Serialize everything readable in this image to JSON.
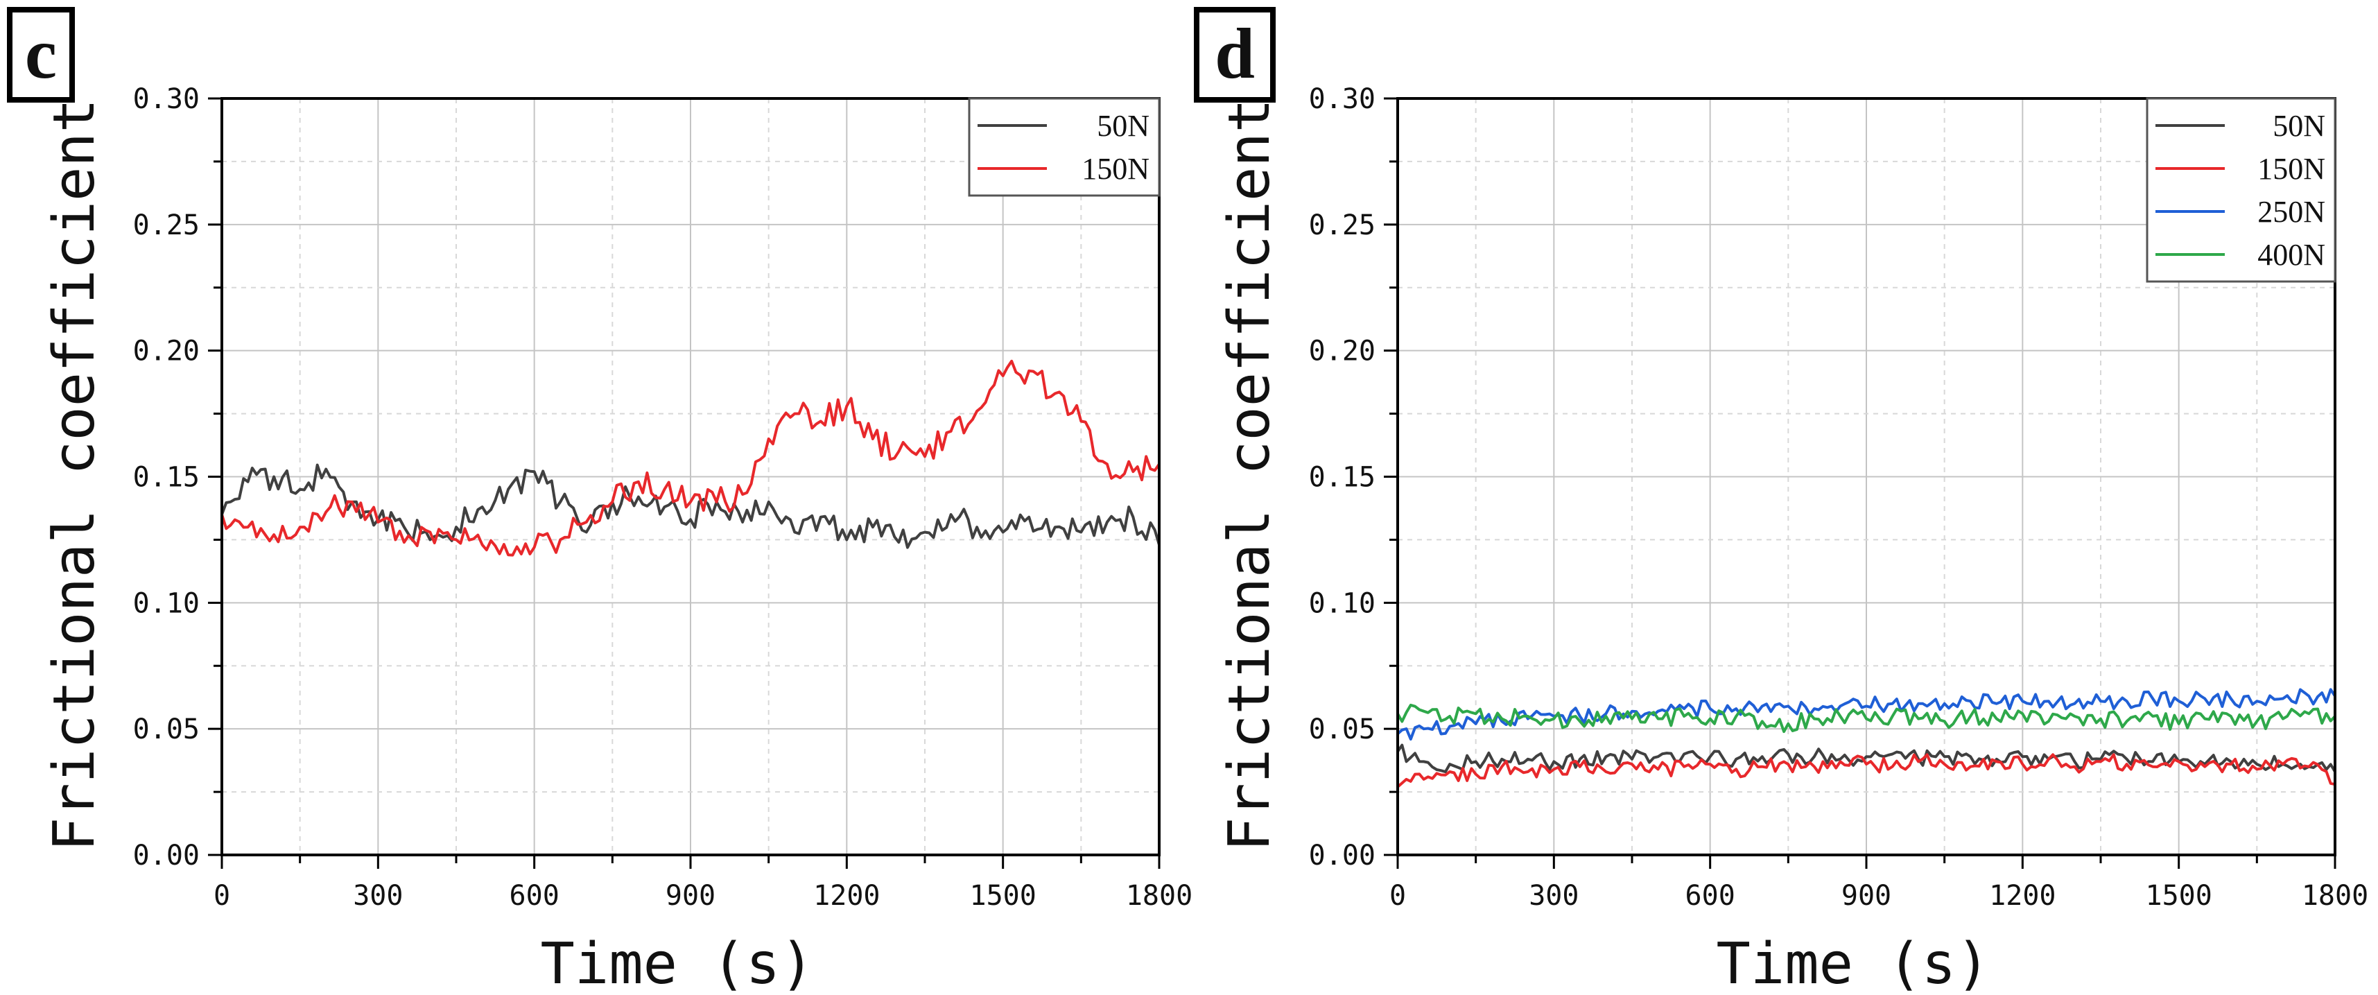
{
  "chart_data": [
    {
      "panel": "c",
      "type": "line",
      "xlabel": "Time (s)",
      "ylabel": "Frictional coefficient",
      "xlim": [
        0,
        1800
      ],
      "ylim": [
        0,
        0.3
      ],
      "xticks": [
        "0",
        "300",
        "600",
        "900",
        "1200",
        "1500",
        "1800"
      ],
      "yticks": [
        "0.00",
        "0.05",
        "0.10",
        "0.15",
        "0.20",
        "0.25",
        "0.30"
      ],
      "legend_position": "top-right",
      "grid": true,
      "series": [
        {
          "name": "50N",
          "color": "#404040",
          "x": [
            0,
            50,
            100,
            150,
            200,
            250,
            300,
            350,
            400,
            450,
            500,
            550,
            600,
            650,
            700,
            750,
            800,
            850,
            900,
            950,
            1000,
            1050,
            1100,
            1150,
            1200,
            1250,
            1300,
            1350,
            1400,
            1450,
            1500,
            1550,
            1600,
            1650,
            1700,
            1750,
            1800
          ],
          "values": [
            0.135,
            0.148,
            0.15,
            0.145,
            0.153,
            0.14,
            0.133,
            0.13,
            0.125,
            0.13,
            0.138,
            0.145,
            0.152,
            0.14,
            0.128,
            0.14,
            0.142,
            0.138,
            0.133,
            0.14,
            0.132,
            0.14,
            0.128,
            0.134,
            0.125,
            0.13,
            0.124,
            0.128,
            0.135,
            0.13,
            0.128,
            0.134,
            0.13,
            0.128,
            0.132,
            0.134,
            0.123
          ]
        },
        {
          "name": "150N",
          "color": "#e8282b",
          "x": [
            0,
            50,
            100,
            150,
            200,
            250,
            300,
            350,
            400,
            450,
            500,
            550,
            600,
            650,
            700,
            750,
            800,
            850,
            900,
            950,
            1000,
            1050,
            1100,
            1150,
            1200,
            1250,
            1300,
            1350,
            1400,
            1450,
            1500,
            1550,
            1600,
            1650,
            1700,
            1750,
            1800
          ],
          "values": [
            0.135,
            0.13,
            0.127,
            0.13,
            0.136,
            0.14,
            0.132,
            0.124,
            0.128,
            0.125,
            0.123,
            0.119,
            0.122,
            0.125,
            0.132,
            0.14,
            0.148,
            0.145,
            0.14,
            0.14,
            0.143,
            0.165,
            0.175,
            0.172,
            0.178,
            0.165,
            0.16,
            0.158,
            0.168,
            0.176,
            0.19,
            0.192,
            0.183,
            0.172,
            0.155,
            0.152,
            0.155
          ]
        }
      ]
    },
    {
      "panel": "d",
      "type": "line",
      "xlabel": "Time (s)",
      "ylabel": "Frictional coefficient",
      "xlim": [
        0,
        1800
      ],
      "ylim": [
        0,
        0.3
      ],
      "xticks": [
        "0",
        "300",
        "600",
        "900",
        "1200",
        "1500",
        "1800"
      ],
      "yticks": [
        "0.00",
        "0.05",
        "0.10",
        "0.15",
        "0.20",
        "0.25",
        "0.30"
      ],
      "legend_position": "top-right",
      "grid": true,
      "series": [
        {
          "name": "50N",
          "color": "#404040",
          "x": [
            0,
            50,
            100,
            150,
            200,
            250,
            300,
            350,
            400,
            450,
            500,
            550,
            600,
            650,
            700,
            750,
            800,
            850,
            900,
            950,
            1000,
            1050,
            1100,
            1150,
            1200,
            1250,
            1300,
            1350,
            1400,
            1450,
            1500,
            1550,
            1600,
            1650,
            1700,
            1750,
            1800
          ],
          "values": [
            0.041,
            0.037,
            0.036,
            0.037,
            0.038,
            0.038,
            0.037,
            0.038,
            0.039,
            0.038,
            0.039,
            0.04,
            0.039,
            0.038,
            0.039,
            0.04,
            0.039,
            0.038,
            0.039,
            0.04,
            0.038,
            0.039,
            0.039,
            0.038,
            0.039,
            0.038,
            0.037,
            0.038,
            0.038,
            0.037,
            0.037,
            0.036,
            0.037,
            0.036,
            0.036,
            0.035,
            0.033
          ]
        },
        {
          "name": "150N",
          "color": "#e8282b",
          "x": [
            0,
            50,
            100,
            150,
            200,
            250,
            300,
            350,
            400,
            450,
            500,
            550,
            600,
            650,
            700,
            750,
            800,
            850,
            900,
            950,
            1000,
            1050,
            1100,
            1150,
            1200,
            1250,
            1300,
            1350,
            1400,
            1450,
            1500,
            1550,
            1600,
            1650,
            1700,
            1750,
            1800
          ],
          "values": [
            0.027,
            0.03,
            0.033,
            0.032,
            0.035,
            0.033,
            0.034,
            0.035,
            0.033,
            0.036,
            0.034,
            0.035,
            0.036,
            0.034,
            0.035,
            0.036,
            0.035,
            0.037,
            0.036,
            0.035,
            0.037,
            0.036,
            0.035,
            0.037,
            0.036,
            0.038,
            0.035,
            0.037,
            0.036,
            0.035,
            0.037,
            0.035,
            0.036,
            0.034,
            0.036,
            0.035,
            0.028
          ]
        },
        {
          "name": "250N",
          "color": "#1f5fd6",
          "x": [
            0,
            50,
            100,
            150,
            200,
            250,
            300,
            350,
            400,
            450,
            500,
            550,
            600,
            650,
            700,
            750,
            800,
            850,
            900,
            950,
            1000,
            1050,
            1100,
            1150,
            1200,
            1250,
            1300,
            1350,
            1400,
            1450,
            1500,
            1550,
            1600,
            1650,
            1700,
            1750,
            1800
          ],
          "values": [
            0.048,
            0.05,
            0.051,
            0.052,
            0.053,
            0.054,
            0.055,
            0.055,
            0.056,
            0.057,
            0.057,
            0.058,
            0.058,
            0.058,
            0.059,
            0.059,
            0.058,
            0.059,
            0.059,
            0.06,
            0.06,
            0.06,
            0.061,
            0.06,
            0.061,
            0.061,
            0.06,
            0.061,
            0.061,
            0.062,
            0.061,
            0.062,
            0.062,
            0.061,
            0.062,
            0.063,
            0.063
          ]
        },
        {
          "name": "400N",
          "color": "#2ea84a",
          "x": [
            0,
            50,
            100,
            150,
            200,
            250,
            300,
            350,
            400,
            450,
            500,
            550,
            600,
            650,
            700,
            750,
            800,
            850,
            900,
            950,
            1000,
            1050,
            1100,
            1150,
            1200,
            1250,
            1300,
            1350,
            1400,
            1450,
            1500,
            1550,
            1600,
            1650,
            1700,
            1750,
            1800
          ],
          "values": [
            0.056,
            0.057,
            0.055,
            0.056,
            0.054,
            0.055,
            0.054,
            0.053,
            0.055,
            0.054,
            0.054,
            0.055,
            0.054,
            0.055,
            0.053,
            0.052,
            0.054,
            0.055,
            0.054,
            0.055,
            0.054,
            0.053,
            0.055,
            0.054,
            0.056,
            0.053,
            0.055,
            0.054,
            0.053,
            0.055,
            0.052,
            0.054,
            0.055,
            0.053,
            0.054,
            0.056,
            0.055
          ]
        }
      ]
    }
  ]
}
